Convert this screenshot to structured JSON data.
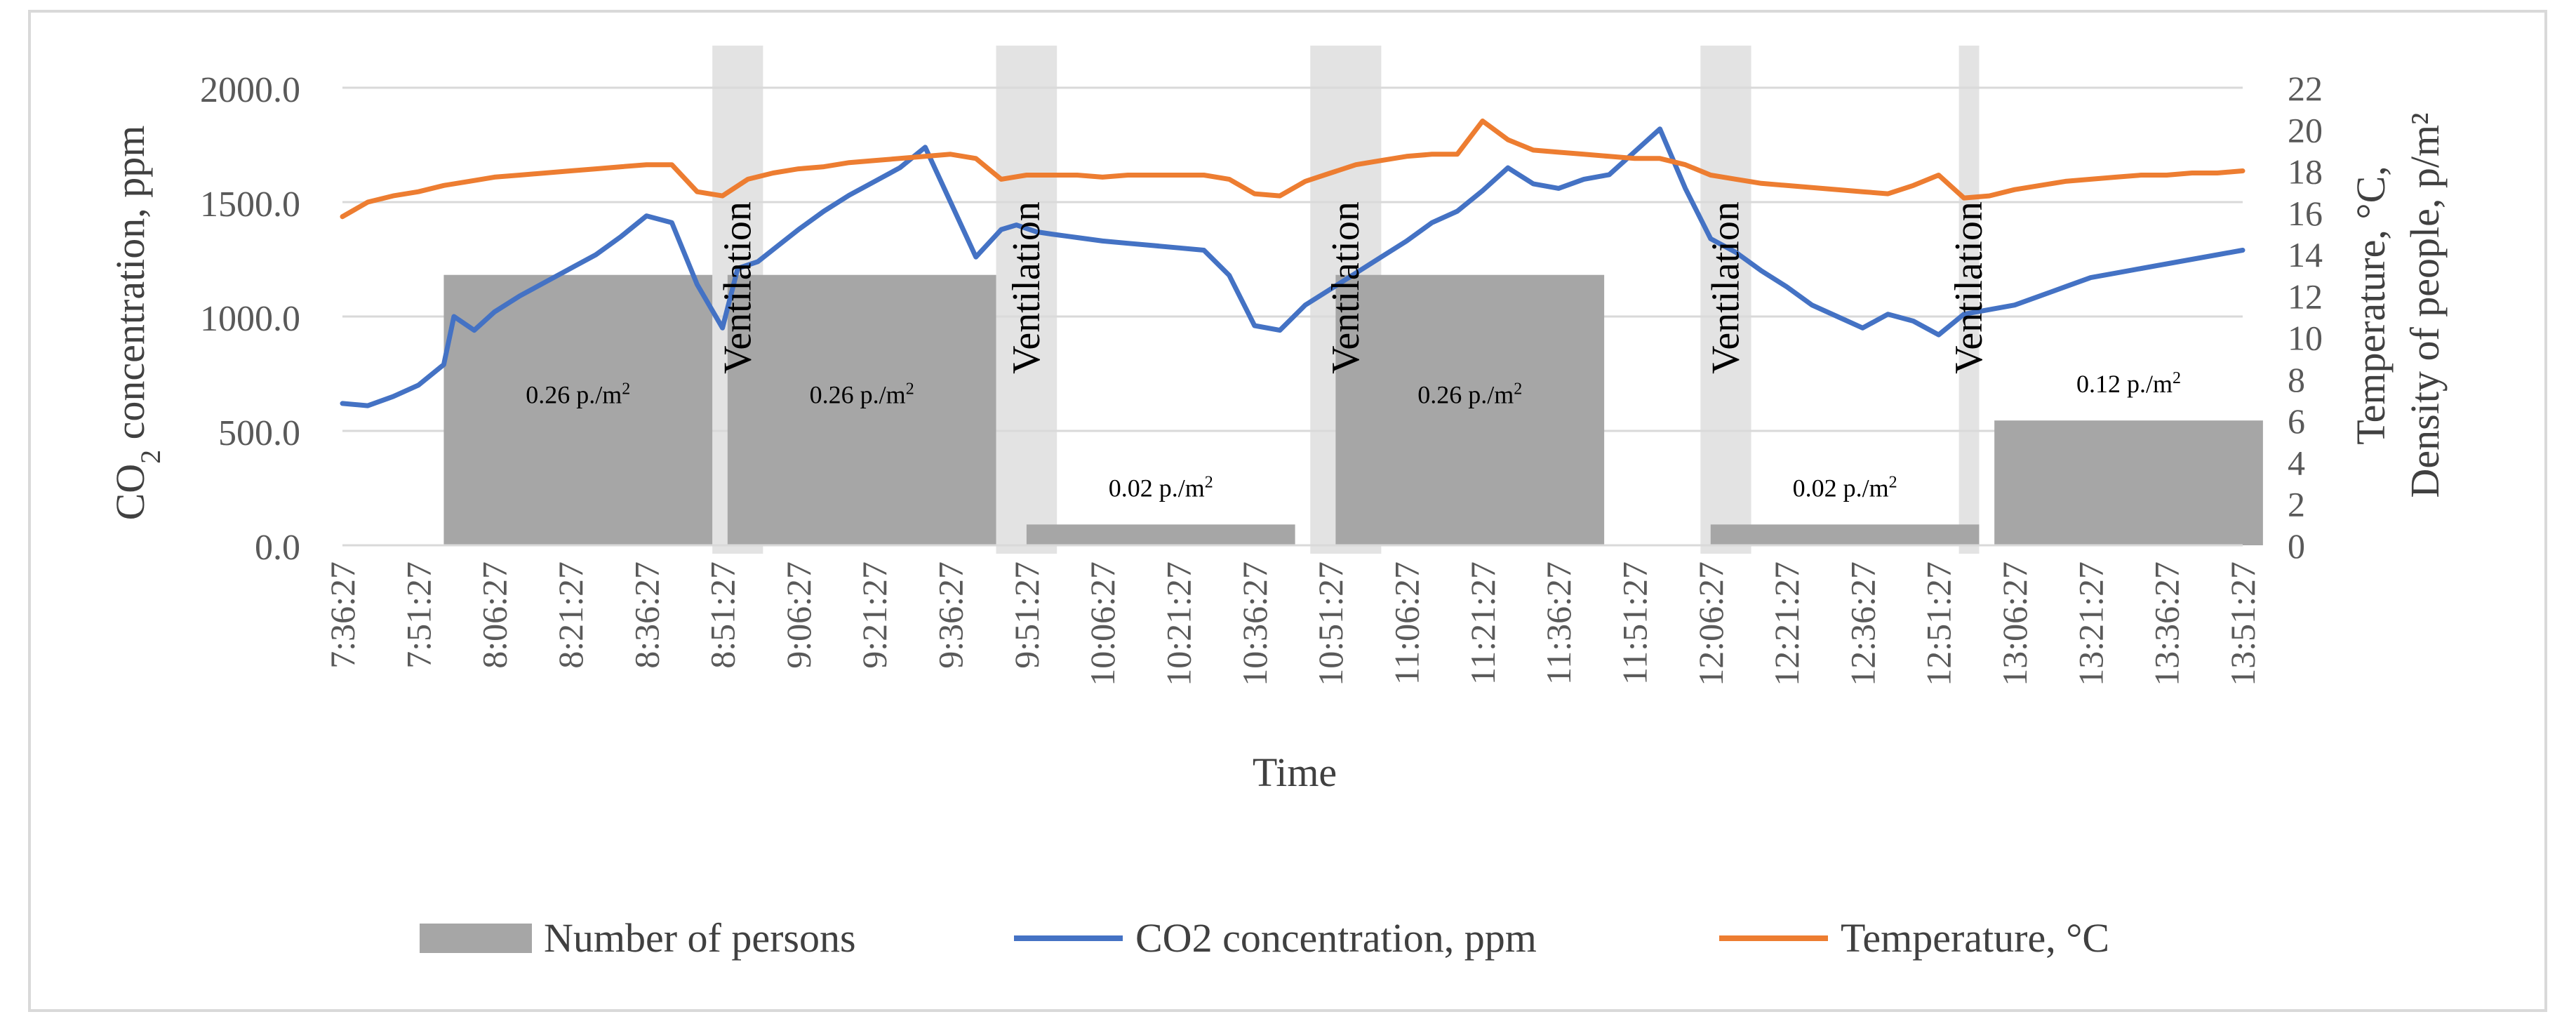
{
  "chart_data": {
    "type": "line",
    "title": "",
    "xlabel": "Time",
    "ylabel_left": {
      "main": "CO",
      "sub": "2",
      "rest": " concentration, ppm"
    },
    "ylabel_right": [
      "Temperature, °C,",
      "Density of people, p/m²"
    ],
    "y_left": {
      "min": 0,
      "max": 2000,
      "ticks": [
        "0.0",
        "500.0",
        "1000.0",
        "1500.0",
        "2000.0"
      ]
    },
    "y_right": {
      "min": 0,
      "max": 22,
      "ticks": [
        "0",
        "2",
        "4",
        "6",
        "8",
        "10",
        "12",
        "14",
        "16",
        "18",
        "20",
        "22"
      ]
    },
    "x_ticks": [
      "7:36:27",
      "7:51:27",
      "8:06:27",
      "8:21:27",
      "8:36:27",
      "8:51:27",
      "9:06:27",
      "9:21:27",
      "9:36:27",
      "9:51:27",
      "10:06:27",
      "10:21:27",
      "10:36:27",
      "10:51:27",
      "11:06:27",
      "11:21:27",
      "11:36:27",
      "11:51:27",
      "12:06:27",
      "12:21:27",
      "12:36:27",
      "12:51:27",
      "13:06:27",
      "13:21:27",
      "13:36:27",
      "13:51:27"
    ],
    "x_range": [
      "7:36:27",
      "13:51:27"
    ],
    "grid": "horizontal",
    "legend_position": "bottom",
    "legend": [
      {
        "name": "Number of persons",
        "kind": "bar",
        "color": "#a6a6a6"
      },
      {
        "name": "CO2 concentration, ppm",
        "kind": "line",
        "color": "#4472c4"
      },
      {
        "name": "Temperature, °C",
        "kind": "line",
        "color": "#ed7d31"
      }
    ],
    "occupancy": [
      {
        "start": "7:56:27",
        "end": "8:49:27",
        "value": 13,
        "label": "0.26 p./m²",
        "label_parts": [
          "0.26 p./m",
          "2"
        ]
      },
      {
        "start": "8:52:27",
        "end": "9:45:27",
        "value": 13,
        "label": "0.26 p./m²",
        "label_parts": [
          "0.26 p./m",
          "2"
        ]
      },
      {
        "start": "9:51:27",
        "end": "10:44:27",
        "value": 1,
        "label": "0.02 p./m²",
        "label_parts": [
          "0.02 p./m",
          "2"
        ]
      },
      {
        "start": "10:52:27",
        "end": "11:45:27",
        "value": 13,
        "label": "0.26 p./m²",
        "label_parts": [
          "0.26 p./m",
          "2"
        ]
      },
      {
        "start": "12:06:27",
        "end": "12:59:27",
        "value": 1,
        "label": "0.02 p./m²",
        "label_parts": [
          "0.02 p./m",
          "2"
        ]
      },
      {
        "start": "13:02:27",
        "end": "13:55:27",
        "value": 6,
        "label": "0.12 p./m²",
        "label_parts": [
          "0.12 p./m",
          "2"
        ]
      }
    ],
    "ventilation": [
      {
        "start": "8:49:27",
        "end": "8:59:27",
        "label": "Ventilation"
      },
      {
        "start": "9:45:27",
        "end": "9:57:27",
        "label": "Ventilation"
      },
      {
        "start": "10:47:27",
        "end": "11:01:27",
        "label": "Ventilation"
      },
      {
        "start": "12:04:27",
        "end": "12:14:27",
        "label": "Ventilation"
      },
      {
        "start": "12:55:27",
        "end": "12:59:27",
        "label": "Ventilation"
      }
    ],
    "series": [
      {
        "name": "CO2 concentration, ppm",
        "axis": "left",
        "color": "#4472c4",
        "x": [
          "7:36:27",
          "7:41:27",
          "7:46:27",
          "7:51:27",
          "7:56:27",
          "7:58:27",
          "8:02:27",
          "8:06:27",
          "8:11:27",
          "8:16:27",
          "8:21:27",
          "8:26:27",
          "8:31:27",
          "8:36:27",
          "8:41:27",
          "8:46:27",
          "8:51:27",
          "8:54:27",
          "8:58:27",
          "9:02:27",
          "9:06:27",
          "9:11:27",
          "9:16:27",
          "9:21:27",
          "9:26:27",
          "9:31:27",
          "9:36:27",
          "9:41:27",
          "9:46:27",
          "9:49:27",
          "9:53:27",
          "9:56:27",
          "10:01:27",
          "10:06:27",
          "10:11:27",
          "10:16:27",
          "10:21:27",
          "10:26:27",
          "10:31:27",
          "10:36:27",
          "10:41:27",
          "10:46:27",
          "10:51:27",
          "10:56:27",
          "11:01:27",
          "11:06:27",
          "11:11:27",
          "11:16:27",
          "11:21:27",
          "11:26:27",
          "11:31:27",
          "11:36:27",
          "11:41:27",
          "11:46:27",
          "11:51:27",
          "11:56:27",
          "12:01:27",
          "12:06:27",
          "12:11:27",
          "12:16:27",
          "12:21:27",
          "12:26:27",
          "12:31:27",
          "12:36:27",
          "12:41:27",
          "12:46:27",
          "12:51:27",
          "12:56:27",
          "13:01:27",
          "13:06:27",
          "13:11:27",
          "13:16:27",
          "13:21:27",
          "13:26:27",
          "13:31:27",
          "13:36:27",
          "13:41:27",
          "13:46:27",
          "13:51:27"
        ],
        "y": [
          620,
          610,
          650,
          700,
          790,
          1000,
          940,
          1020,
          1090,
          1150,
          1210,
          1270,
          1350,
          1440,
          1410,
          1140,
          950,
          1210,
          1240,
          1310,
          1380,
          1460,
          1530,
          1590,
          1650,
          1740,
          1500,
          1260,
          1380,
          1400,
          1370,
          1360,
          1345,
          1330,
          1320,
          1310,
          1300,
          1290,
          1180,
          960,
          940,
          1050,
          1120,
          1190,
          1260,
          1330,
          1410,
          1460,
          1550,
          1650,
          1580,
          1560,
          1600,
          1620,
          1720,
          1820,
          1560,
          1340,
          1280,
          1200,
          1130,
          1050,
          1000,
          950,
          1010,
          980,
          920,
          1010,
          1030,
          1050,
          1090,
          1130,
          1170,
          1190,
          1210,
          1230,
          1250,
          1270,
          1290
        ]
      },
      {
        "name": "Temperature, °C",
        "axis": "right",
        "color": "#ed7d31",
        "x": [
          "7:36:27",
          "7:41:27",
          "7:46:27",
          "7:51:27",
          "7:56:27",
          "8:01:27",
          "8:06:27",
          "8:11:27",
          "8:16:27",
          "8:21:27",
          "8:26:27",
          "8:31:27",
          "8:36:27",
          "8:41:27",
          "8:46:27",
          "8:51:27",
          "8:56:27",
          "9:01:27",
          "9:06:27",
          "9:11:27",
          "9:16:27",
          "9:21:27",
          "9:26:27",
          "9:31:27",
          "9:36:27",
          "9:41:27",
          "9:46:27",
          "9:51:27",
          "9:56:27",
          "10:01:27",
          "10:06:27",
          "10:11:27",
          "10:16:27",
          "10:21:27",
          "10:26:27",
          "10:31:27",
          "10:36:27",
          "10:41:27",
          "10:46:27",
          "10:51:27",
          "10:56:27",
          "11:01:27",
          "11:06:27",
          "11:11:27",
          "11:16:27",
          "11:21:27",
          "11:26:27",
          "11:31:27",
          "11:36:27",
          "11:41:27",
          "11:46:27",
          "11:51:27",
          "11:56:27",
          "12:01:27",
          "12:06:27",
          "12:11:27",
          "12:16:27",
          "12:21:27",
          "12:26:27",
          "12:31:27",
          "12:36:27",
          "12:41:27",
          "12:46:27",
          "12:51:27",
          "12:56:27",
          "13:01:27",
          "13:06:27",
          "13:11:27",
          "13:16:27",
          "13:21:27",
          "13:26:27",
          "13:31:27",
          "13:36:27",
          "13:41:27",
          "13:46:27",
          "13:51:27"
        ],
        "y": [
          15.8,
          16.5,
          16.8,
          17.0,
          17.3,
          17.5,
          17.7,
          17.8,
          17.9,
          18.0,
          18.1,
          18.2,
          18.3,
          18.3,
          17.0,
          16.8,
          17.6,
          17.9,
          18.1,
          18.2,
          18.4,
          18.5,
          18.6,
          18.7,
          18.8,
          18.6,
          17.6,
          17.8,
          17.8,
          17.8,
          17.7,
          17.8,
          17.8,
          17.8,
          17.8,
          17.6,
          16.9,
          16.8,
          17.5,
          17.9,
          18.3,
          18.5,
          18.7,
          18.8,
          18.8,
          20.4,
          19.5,
          19.0,
          18.9,
          18.8,
          18.7,
          18.6,
          18.6,
          18.3,
          17.8,
          17.6,
          17.4,
          17.3,
          17.2,
          17.1,
          17.0,
          16.9,
          17.3,
          17.8,
          16.7,
          16.8,
          17.1,
          17.3,
          17.5,
          17.6,
          17.7,
          17.8,
          17.8,
          17.9,
          17.9,
          18.0
        ]
      }
    ]
  }
}
